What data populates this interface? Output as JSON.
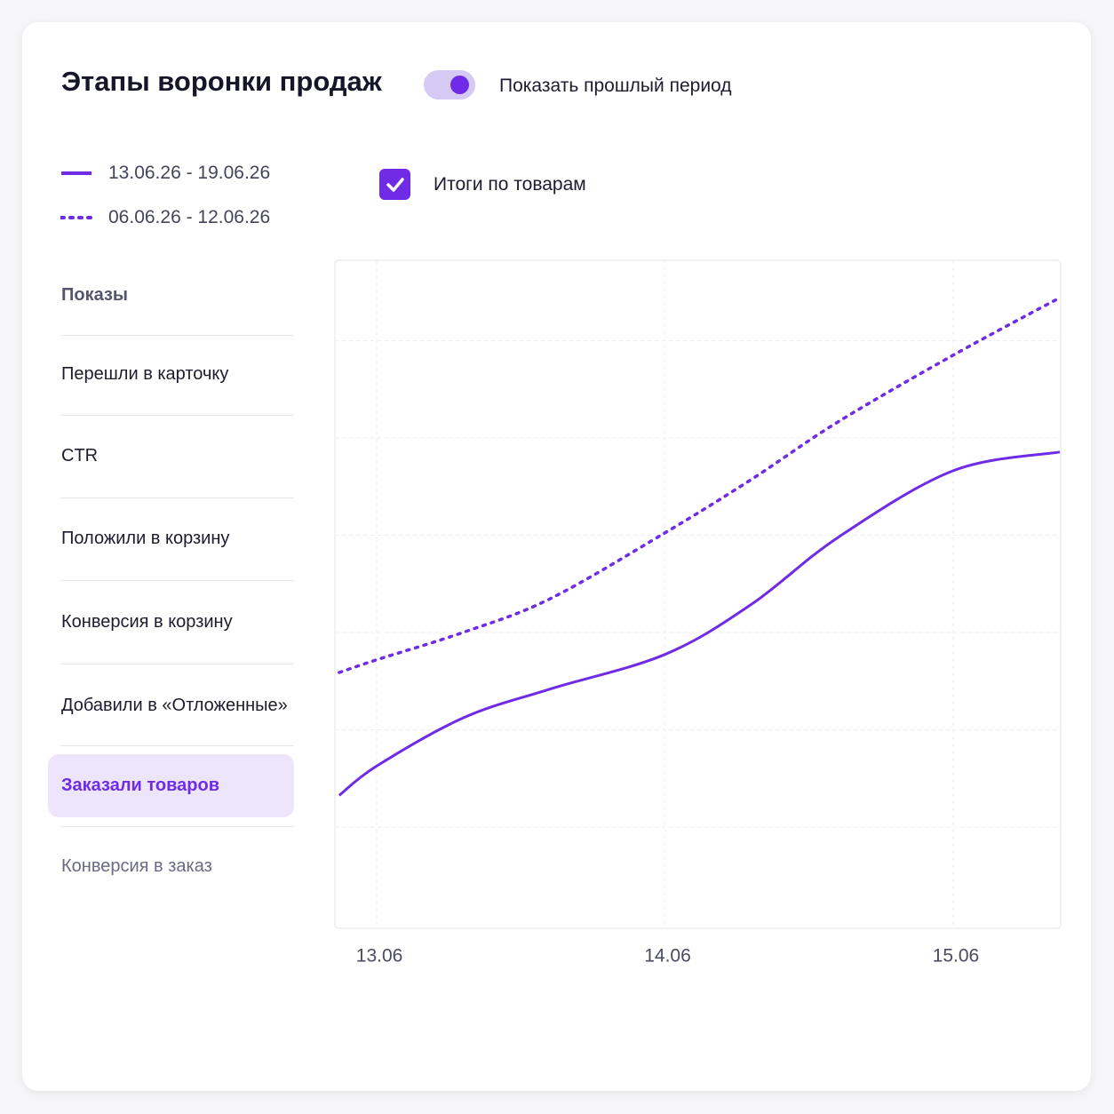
{
  "header": {
    "title": "Этапы воронки продаж",
    "toggle_label": "Показать прошлый период",
    "toggle_on": true
  },
  "checkbox": {
    "label": "Итоги по товарам",
    "checked": true
  },
  "metrics": {
    "items": [
      "Показы",
      "Перешли в карточку",
      "CTR",
      "Положили в корзину",
      "Конверсия в корзину",
      "Добавили в «Отложенные»",
      "Заказали товаров",
      "Конверсия в заказ"
    ],
    "active": 6
  },
  "chart_data": {
    "type": "line",
    "x": [
      12.87,
      13,
      13.3,
      13.6,
      14,
      14.3,
      14.6,
      15,
      15.37
    ],
    "xlim": [
      12.855,
      15.373
    ],
    "xticks": [
      {
        "value": 13,
        "label": "13.06"
      },
      {
        "value": 14,
        "label": "14.06"
      },
      {
        "value": 15,
        "label": "15.06"
      }
    ],
    "ylim": [
      0,
      100
    ],
    "grid": true,
    "series": [
      {
        "name": "13.06.26 - 19.06.26",
        "color": "#6f2be6",
        "style": "solid",
        "values": [
          19.9,
          24.3,
          31.5,
          35.8,
          41,
          48.5,
          58.5,
          68.5,
          71.3
        ]
      },
      {
        "name": "06.06.26 - 12.06.26",
        "color": "#6f2be6",
        "style": "dotted",
        "values": [
          38.3,
          40.2,
          44.3,
          49.3,
          59.2,
          67.2,
          75.8,
          85.8,
          94.4
        ]
      }
    ]
  }
}
